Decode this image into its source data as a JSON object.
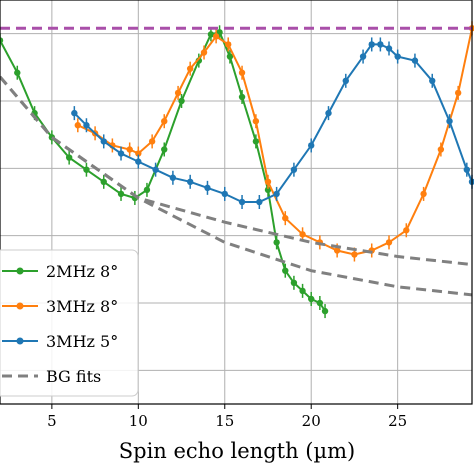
{
  "chart_data": {
    "type": "line",
    "xlabel": "Spin echo length (µm)",
    "ylabel": "",
    "xlim": [
      2.0,
      29.3
    ],
    "ylim": [
      0.0,
      1.0
    ],
    "x_ticks": [
      5,
      10,
      15,
      20,
      25
    ],
    "x_tick_labels": [
      "5",
      "10",
      "15",
      "20",
      "25"
    ],
    "y_gridlines": [
      0.0833,
      0.25,
      0.4167,
      0.5833,
      0.75,
      0.9167
    ],
    "grid": true,
    "legend_position": "lower-left",
    "series": [
      {
        "name": "2MHz 8°",
        "color": "#2ca02c",
        "style": "solid-markers-errorbars",
        "x": [
          2.0,
          3.0,
          4.0,
          5.0,
          6.0,
          7.0,
          8.0,
          9.0,
          9.8,
          10.5,
          11.5,
          12.5,
          13.5,
          14.2,
          14.7,
          15.3,
          16.0,
          16.8,
          17.5,
          18.0,
          18.5,
          19.0,
          19.5,
          20.0,
          20.5,
          20.8
        ],
        "y": [
          0.9,
          0.82,
          0.72,
          0.66,
          0.61,
          0.58,
          0.55,
          0.52,
          0.51,
          0.53,
          0.63,
          0.75,
          0.85,
          0.915,
          0.92,
          0.86,
          0.76,
          0.65,
          0.53,
          0.4,
          0.33,
          0.3,
          0.28,
          0.26,
          0.25,
          0.23
        ]
      },
      {
        "name": "3MHz 8°",
        "color": "#ff7f0e",
        "style": "solid-markers-errorbars",
        "x": [
          6.5,
          7.5,
          8.5,
          9.5,
          10.0,
          10.8,
          11.5,
          12.3,
          13.0,
          13.8,
          14.5,
          15.2,
          16.0,
          16.8,
          17.5,
          18.5,
          19.5,
          20.5,
          21.5,
          22.5,
          23.5,
          24.5,
          25.5,
          26.5,
          27.5,
          28.5,
          29.3
        ],
        "y": [
          0.69,
          0.67,
          0.64,
          0.63,
          0.62,
          0.65,
          0.7,
          0.77,
          0.83,
          0.87,
          0.91,
          0.89,
          0.82,
          0.7,
          0.55,
          0.46,
          0.42,
          0.4,
          0.38,
          0.37,
          0.38,
          0.4,
          0.43,
          0.52,
          0.63,
          0.77,
          0.93
        ]
      },
      {
        "name": "3MHz 5°",
        "color": "#1f77b4",
        "style": "solid-markers-errorbars",
        "x": [
          6.3,
          7.0,
          8.0,
          9.0,
          10.0,
          11.0,
          12.0,
          13.0,
          14.0,
          15.0,
          16.0,
          17.0,
          18.0,
          19.0,
          20.0,
          21.0,
          22.0,
          23.0,
          23.5,
          24.0,
          24.5,
          25.0,
          26.0,
          27.0,
          28.0,
          29.0,
          29.3
        ],
        "y": [
          0.72,
          0.69,
          0.65,
          0.62,
          0.6,
          0.58,
          0.56,
          0.55,
          0.535,
          0.52,
          0.5,
          0.5,
          0.52,
          0.58,
          0.64,
          0.72,
          0.8,
          0.86,
          0.89,
          0.89,
          0.88,
          0.86,
          0.85,
          0.8,
          0.7,
          0.58,
          0.55
        ]
      },
      {
        "name": "BG fits",
        "color": "#808080",
        "style": "dashed",
        "x": [
          2.0,
          5.0,
          10.0,
          15.0,
          20.0,
          25.0,
          29.3
        ],
        "y": [
          0.81,
          0.66,
          0.51,
          0.4,
          0.33,
          0.29,
          0.27
        ]
      },
      {
        "name": "",
        "color": "#808080",
        "style": "dashed",
        "x": [
          2.0,
          5.0,
          10.0,
          15.0,
          20.0,
          25.0,
          29.3
        ],
        "y": [
          0.81,
          0.66,
          0.51,
          0.45,
          0.4,
          0.365,
          0.345
        ]
      },
      {
        "name": "",
        "color": "#a94fa9",
        "style": "dashed",
        "x": [
          2.0,
          29.3
        ],
        "y": [
          0.93,
          0.93
        ]
      }
    ]
  }
}
